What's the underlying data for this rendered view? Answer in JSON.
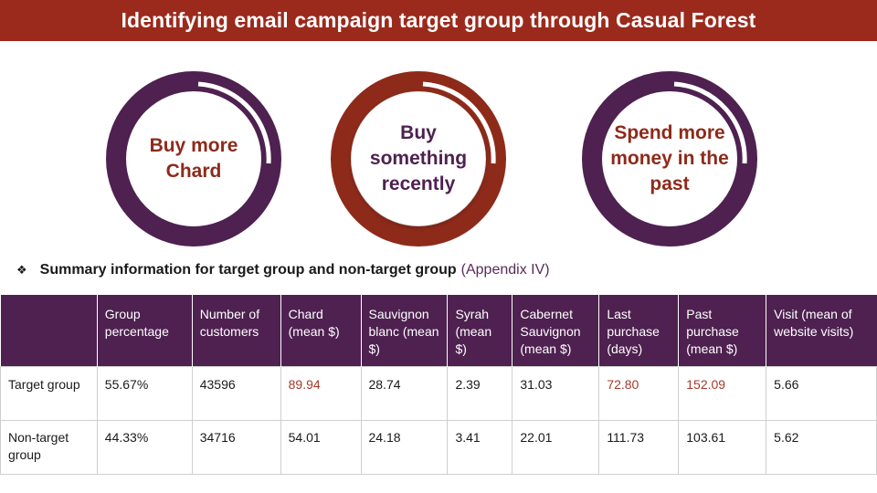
{
  "title": "Identifying email campaign target group through Casual Forest",
  "colors": {
    "title_bar": "#9b2a1c",
    "purple": "#4e2150",
    "red": "#8e2a1a",
    "highlight_text": "#a6392a"
  },
  "circles": [
    {
      "label": "Buy more Chard",
      "ring_color": "purple",
      "text_color": "red"
    },
    {
      "label": "Buy something recently",
      "ring_color": "red",
      "text_color": "purple"
    },
    {
      "label": "Spend more money in the past",
      "ring_color": "purple",
      "text_color": "red"
    }
  ],
  "summary": {
    "bullet_icon": "diamond-bullet-icon",
    "heading": "Summary information for target group and non-target group",
    "reference": "(Appendix IV)"
  },
  "table": {
    "headers": [
      "",
      "Group percentage",
      "Number of customers",
      "Chard (mean $)",
      "Sauvignon blanc (mean $)",
      "Syrah (mean $)",
      "Cabernet Sauvignon (mean $)",
      "Last purchase (days)",
      "Past purchase (mean $)",
      "Visit (mean of website visits)"
    ],
    "rows": [
      [
        "Target group",
        "55.67%",
        "43596",
        "89.94",
        "28.74",
        "2.39",
        "31.03",
        "72.80",
        "152.09",
        "5.66"
      ],
      [
        "Non-target group",
        "44.33%",
        "34716",
        "54.01",
        "24.18",
        "3.41",
        "22.01",
        "111.73",
        "103.61",
        "5.62"
      ]
    ],
    "highlighted_cells": [
      [
        0,
        3
      ],
      [
        0,
        7
      ],
      [
        0,
        8
      ]
    ]
  }
}
